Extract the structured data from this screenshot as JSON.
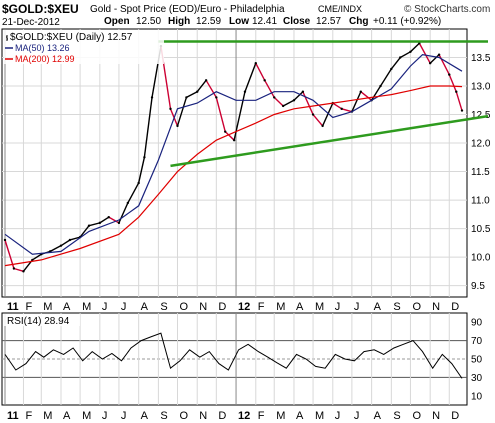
{
  "header": {
    "symbol": "$GOLD:$XEU",
    "description": "Gold - Spot Price (EOD)/Euro - Philadelphia",
    "exchange": "CME/INDX",
    "brand": "© StockCharts.com",
    "date": "21-Dec-2012",
    "open_label": "Open",
    "open": "12.50",
    "high_label": "High",
    "high": "12.59",
    "low_label": "Low",
    "low": "12.41",
    "close_label": "Close",
    "close": "12.57",
    "chg_label": "Chg",
    "chg": "+0.11 (+0.92%)"
  },
  "legend": {
    "price": "$GOLD:$XEU (Daily) 12.57",
    "ma50": "MA(50) 13.26",
    "ma200": "MA(200) 12.99",
    "rsi": "RSI(14) 28.94"
  },
  "colors": {
    "price_up": "#000000",
    "price_down": "#cc0033",
    "ma50": "#1a237e",
    "ma200": "#e00000",
    "trendline": "#2e9b1e",
    "grid": "#d8d8d8",
    "rsi_line": "#000000"
  },
  "x_axis": {
    "ticks": [
      "11",
      "F",
      "M",
      "A",
      "M",
      "J",
      "J",
      "A",
      "S",
      "O",
      "N",
      "D",
      "12",
      "F",
      "M",
      "A",
      "M",
      "J",
      "J",
      "A",
      "S",
      "O",
      "N",
      "D"
    ],
    "bold_ticks": [
      "11",
      "12"
    ]
  },
  "chart_data": {
    "type": "line",
    "title": "$GOLD:$XEU (Daily)",
    "x_range": [
      "2011-01-03",
      "2012-12-21"
    ],
    "price_axis": {
      "ylim": [
        9.3,
        14.0
      ],
      "ticks": [
        "9.5",
        "10.0",
        "10.5",
        "11.0",
        "11.5",
        "12.0",
        "12.5",
        "13.0",
        "13.5"
      ]
    },
    "rsi_axis": {
      "ylim": [
        0,
        100
      ],
      "ticks": [
        "10",
        "30",
        "50",
        "70",
        "90"
      ],
      "reference_lines": [
        30,
        50,
        70
      ]
    },
    "series": [
      {
        "name": "$GOLD:$XEU (Daily)",
        "kind": "price",
        "dates": [
          "2011-01-03",
          "2011-01-17",
          "2011-02-01",
          "2011-02-15",
          "2011-03-01",
          "2011-03-15",
          "2011-04-01",
          "2011-04-15",
          "2011-05-01",
          "2011-05-15",
          "2011-06-01",
          "2011-06-15",
          "2011-07-01",
          "2011-07-15",
          "2011-08-01",
          "2011-08-10",
          "2011-08-22",
          "2011-09-05",
          "2011-09-20",
          "2011-10-01",
          "2011-10-15",
          "2011-11-01",
          "2011-11-15",
          "2011-12-01",
          "2011-12-15",
          "2011-12-29",
          "2012-01-15",
          "2012-02-01",
          "2012-02-15",
          "2012-03-01",
          "2012-03-15",
          "2012-04-01",
          "2012-04-15",
          "2012-05-01",
          "2012-05-16",
          "2012-06-01",
          "2012-06-15",
          "2012-07-01",
          "2012-07-15",
          "2012-08-01",
          "2012-08-15",
          "2012-09-01",
          "2012-09-15",
          "2012-10-01",
          "2012-10-15",
          "2012-11-01",
          "2012-11-15",
          "2012-12-01",
          "2012-12-12",
          "2012-12-21"
        ],
        "values": [
          10.3,
          9.8,
          9.75,
          9.95,
          10.05,
          10.1,
          10.2,
          10.3,
          10.35,
          10.55,
          10.6,
          10.7,
          10.6,
          10.95,
          11.3,
          11.75,
          12.8,
          13.7,
          12.6,
          12.3,
          12.8,
          12.9,
          13.1,
          12.8,
          12.2,
          12.05,
          12.9,
          13.4,
          13.1,
          12.8,
          12.65,
          12.75,
          12.9,
          12.5,
          12.3,
          12.7,
          12.6,
          12.55,
          12.9,
          12.75,
          13.0,
          13.3,
          13.5,
          13.6,
          13.75,
          13.4,
          13.55,
          13.2,
          12.9,
          12.57
        ]
      },
      {
        "name": "MA(50)",
        "kind": "ma50",
        "dates": [
          "2011-01-03",
          "2011-02-15",
          "2011-04-01",
          "2011-05-15",
          "2011-07-01",
          "2011-08-01",
          "2011-09-01",
          "2011-10-01",
          "2011-11-01",
          "2011-12-01",
          "2012-01-01",
          "2012-02-01",
          "2012-03-01",
          "2012-04-01",
          "2012-05-01",
          "2012-06-01",
          "2012-07-01",
          "2012-08-01",
          "2012-09-01",
          "2012-10-01",
          "2012-10-20",
          "2012-11-15",
          "2012-12-21"
        ],
        "values": [
          10.4,
          10.05,
          10.1,
          10.45,
          10.65,
          10.9,
          11.7,
          12.6,
          12.7,
          12.9,
          12.75,
          12.75,
          12.9,
          12.9,
          12.75,
          12.45,
          12.55,
          12.75,
          12.95,
          13.35,
          13.55,
          13.5,
          13.26
        ]
      },
      {
        "name": "MA(200)",
        "kind": "ma200",
        "dates": [
          "2011-01-03",
          "2011-03-01",
          "2011-05-01",
          "2011-07-01",
          "2011-08-01",
          "2011-09-01",
          "2011-10-01",
          "2011-11-01",
          "2011-12-01",
          "2012-01-01",
          "2012-02-01",
          "2012-03-01",
          "2012-04-01",
          "2012-05-01",
          "2012-06-01",
          "2012-07-01",
          "2012-08-01",
          "2012-09-01",
          "2012-10-01",
          "2012-11-01",
          "2012-12-01",
          "2012-12-21"
        ],
        "values": [
          9.85,
          9.95,
          10.15,
          10.4,
          10.7,
          11.1,
          11.5,
          11.8,
          12.05,
          12.2,
          12.35,
          12.5,
          12.6,
          12.65,
          12.7,
          12.75,
          12.8,
          12.85,
          12.92,
          13.0,
          13.0,
          12.99
        ]
      },
      {
        "name": "RSI(14)",
        "kind": "rsi",
        "dates": [
          "2011-01-03",
          "2011-01-20",
          "2011-02-05",
          "2011-02-20",
          "2011-03-05",
          "2011-03-20",
          "2011-04-05",
          "2011-04-20",
          "2011-05-05",
          "2011-05-20",
          "2011-06-05",
          "2011-06-20",
          "2011-07-05",
          "2011-07-20",
          "2011-08-05",
          "2011-08-20",
          "2011-09-05",
          "2011-09-20",
          "2011-10-05",
          "2011-10-20",
          "2011-11-05",
          "2011-11-20",
          "2011-12-05",
          "2011-12-20",
          "2012-01-05",
          "2012-01-20",
          "2012-02-05",
          "2012-02-20",
          "2012-03-05",
          "2012-03-20",
          "2012-04-05",
          "2012-04-20",
          "2012-05-05",
          "2012-05-20",
          "2012-06-05",
          "2012-06-20",
          "2012-07-05",
          "2012-07-20",
          "2012-08-05",
          "2012-08-20",
          "2012-09-05",
          "2012-09-20",
          "2012-10-05",
          "2012-10-20",
          "2012-11-05",
          "2012-11-20",
          "2012-12-05",
          "2012-12-21"
        ],
        "values": [
          55,
          38,
          45,
          58,
          52,
          60,
          55,
          62,
          48,
          58,
          50,
          56,
          48,
          62,
          70,
          74,
          78,
          40,
          48,
          60,
          52,
          58,
          45,
          38,
          60,
          66,
          58,
          52,
          46,
          40,
          55,
          50,
          42,
          40,
          55,
          50,
          48,
          58,
          60,
          55,
          62,
          66,
          70,
          58,
          40,
          55,
          45,
          28.94
        ]
      }
    ],
    "trendlines": [
      {
        "name": "resistance",
        "points": [
          [
            "2011-09-01",
            13.78
          ],
          [
            "2012-12-21",
            13.78
          ]
        ]
      },
      {
        "name": "support",
        "points": [
          [
            "2011-09-20",
            11.6
          ],
          [
            "2012-12-21",
            12.42
          ]
        ]
      }
    ]
  }
}
